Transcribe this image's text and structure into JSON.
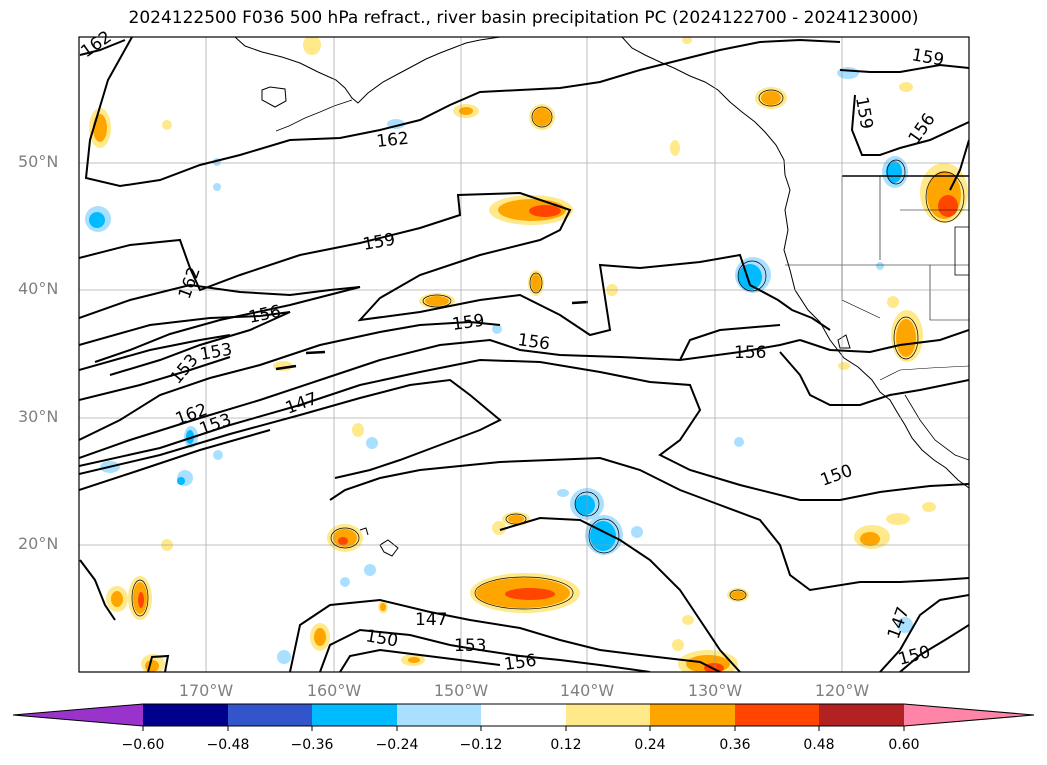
{
  "title": "2024122500 F036 500 hPa refract., river basin precipitation PC (2024122700 - 2024123000)",
  "lat_labels": [
    "50°N",
    "40°N",
    "30°N",
    "20°N"
  ],
  "lon_labels": [
    "170°W",
    "160°W",
    "150°W",
    "140°W",
    "130°W",
    "120°W"
  ],
  "contour_labels": [
    "162",
    "162",
    "159",
    "159",
    "159",
    "159",
    "156",
    "156",
    "156",
    "156",
    "156",
    "153",
    "153",
    "153",
    "153",
    "162",
    "147",
    "147",
    "150",
    "150",
    "150",
    "147"
  ],
  "colorbar": {
    "colors": [
      "#9933cc",
      "#00008b",
      "#3355cc",
      "#00bbff",
      "#aae0ff",
      "#ffffff",
      "#ffe98a",
      "#ffa500",
      "#ff4500",
      "#b22222",
      "#ff85a8"
    ],
    "tick_labels": [
      "−0.60",
      "−0.48",
      "−0.36",
      "−0.24",
      "−0.12",
      "0.12",
      "0.24",
      "0.36",
      "0.48",
      "0.60"
    ]
  }
}
